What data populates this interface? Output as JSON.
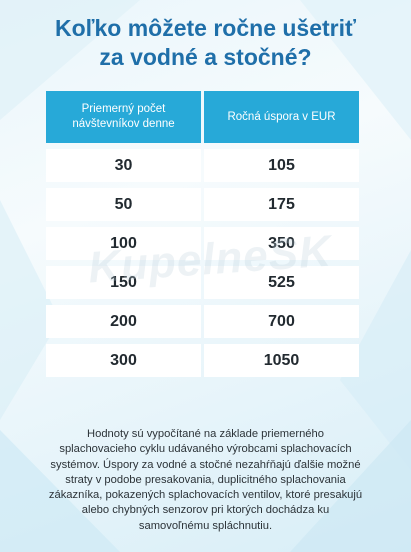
{
  "title": {
    "line1": "Koľko môžete ročne ušetriť",
    "line2": "za vodné a stočné?"
  },
  "table": {
    "headers": [
      "Priemerný počet návštevníkov denne",
      "Ročná úspora v EUR"
    ],
    "rows": [
      [
        "30",
        "105"
      ],
      [
        "50",
        "175"
      ],
      [
        "100",
        "350"
      ],
      [
        "150",
        "525"
      ],
      [
        "200",
        "700"
      ],
      [
        "300",
        "1050"
      ]
    ]
  },
  "chart_data": {
    "type": "table",
    "columns": [
      "Priemerný počet návštevníkov denne",
      "Ročná úspora v EUR"
    ],
    "rows": [
      [
        30,
        105
      ],
      [
        50,
        175
      ],
      [
        100,
        350
      ],
      [
        150,
        525
      ],
      [
        200,
        700
      ],
      [
        300,
        1050
      ]
    ]
  },
  "watermark": "KupelneSK",
  "footnote": "Hodnoty sú vypočítané na základe priemerného splachovacieho cyklu udávaného výrobcami splachovacích systémov. Úspory za vodné a stočné nezahŕňajú ďalšie možné straty v podobe presakovania, duplicitného splachovania zákazníka, pokazených splachovacích ventilov, ktoré presakujú alebo chybných senzorov pri ktorých dochádza ku samovoľnému spláchnutiu.",
  "colors": {
    "title": "#1f6fa9",
    "header_bg": "#27a9d8",
    "cell_bg": "#ffffff"
  }
}
